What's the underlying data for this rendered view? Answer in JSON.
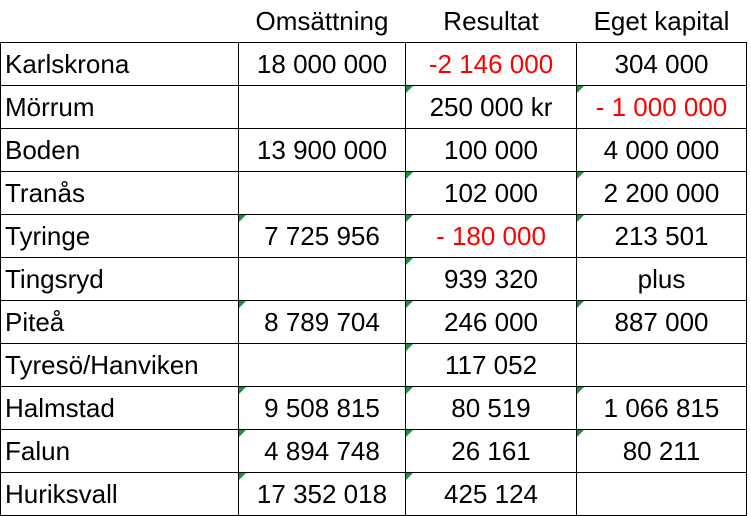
{
  "headers": [
    "",
    "Omsättning",
    "Resultat",
    "Eget kapital"
  ],
  "colors": {
    "negative": "#ff0000",
    "text": "#000000",
    "cell_marker": "#1e9040"
  },
  "rows": [
    {
      "name": "Karlskrona",
      "omsattning": "18 000 000",
      "resultat": "-2 146 000",
      "eget_kapital": "304 000"
    },
    {
      "name": "Mörrum",
      "omsattning": "",
      "resultat": "250 000 kr",
      "eget_kapital": "- 1 000 000"
    },
    {
      "name": "Boden",
      "omsattning": "13 900 000",
      "resultat": "100 000",
      "eget_kapital": "4 000 000"
    },
    {
      "name": "Tranås",
      "omsattning": "",
      "resultat": "102 000",
      "eget_kapital": "2 200 000"
    },
    {
      "name": "Tyringe",
      "omsattning": "7 725 956",
      "resultat": "- 180 000",
      "eget_kapital": "213 501"
    },
    {
      "name": "Tingsryd",
      "omsattning": "",
      "resultat": "939 320",
      "eget_kapital": "plus"
    },
    {
      "name": "Piteå",
      "omsattning": "8 789 704",
      "resultat": "246 000",
      "eget_kapital": "887 000"
    },
    {
      "name": "Tyresö/Hanviken",
      "omsattning": "",
      "resultat": "117 052",
      "eget_kapital": ""
    },
    {
      "name": "Halmstad",
      "omsattning": "9 508 815",
      "resultat": "80 519",
      "eget_kapital": "1 066 815"
    },
    {
      "name": "Falun",
      "omsattning": "4 894 748",
      "resultat": "26 161",
      "eget_kapital": "80 211"
    },
    {
      "name": "Huriksvall",
      "omsattning": "17 352 018",
      "resultat": "425 124",
      "eget_kapital": ""
    }
  ]
}
